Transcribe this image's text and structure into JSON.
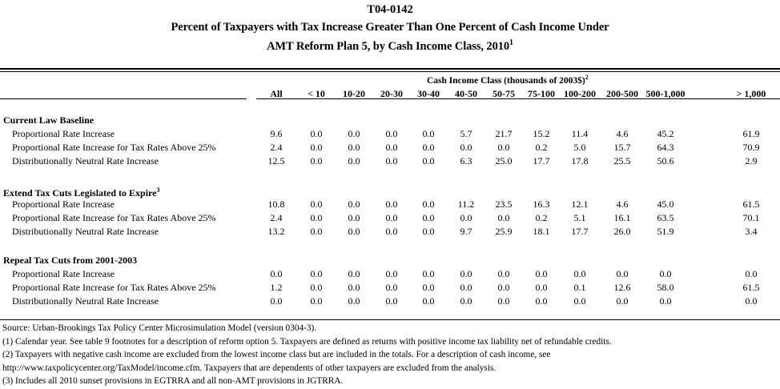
{
  "document": {
    "table_id": "T04-0142",
    "title_line1": "Percent of Taxpayers with Tax Increase Greater Than One Percent of Cash Income Under",
    "title_line2": "AMT Reform Plan 5, by Cash Income Class, 2010",
    "title_footnote": "1"
  },
  "table": {
    "spanner": "Cash Income Class (thousands of 2003$)",
    "spanner_footnote": "2",
    "columns": [
      "All",
      "< 10",
      "10-20",
      "20-30",
      "30-40",
      "40-50",
      "50-75",
      "75-100",
      "100-200",
      "200-500",
      "500-1,000",
      "> 1,000"
    ],
    "sections": [
      {
        "title": "Current Law Baseline",
        "footnote": "",
        "rows": [
          {
            "label": "Proportional Rate Increase",
            "values": [
              "9.6",
              "0.0",
              "0.0",
              "0.0",
              "0.0",
              "5.7",
              "21.7",
              "15.2",
              "11.4",
              "4.6",
              "45.2",
              "61.9"
            ]
          },
          {
            "label": "Proportional Rate Increase for Tax Rates Above 25%",
            "values": [
              "2.4",
              "0.0",
              "0.0",
              "0.0",
              "0.0",
              "0.0",
              "0.0",
              "0.2",
              "5.0",
              "15.7",
              "64.3",
              "70.9"
            ]
          },
          {
            "label": "Distributionally Neutral Rate Increase",
            "values": [
              "12.5",
              "0.0",
              "0.0",
              "0.0",
              "0.0",
              "6.3",
              "25.0",
              "17.7",
              "17.8",
              "25.5",
              "50.6",
              "2.9"
            ]
          }
        ]
      },
      {
        "title": "Extend Tax Cuts Legislated to Expire",
        "footnote": "3",
        "rows": [
          {
            "label": "Proportional Rate Increase",
            "values": [
              "10.8",
              "0.0",
              "0.0",
              "0.0",
              "0.0",
              "11.2",
              "23.5",
              "16.3",
              "12.1",
              "4.6",
              "45.0",
              "61.5"
            ]
          },
          {
            "label": "Proportional Rate Increase for Tax Rates Above 25%",
            "values": [
              "2.4",
              "0.0",
              "0.0",
              "0.0",
              "0.0",
              "0.0",
              "0.0",
              "0.2",
              "5.1",
              "16.1",
              "63.5",
              "70.1"
            ]
          },
          {
            "label": "Distributionally Neutral Rate Increase",
            "values": [
              "13.2",
              "0.0",
              "0.0",
              "0.0",
              "0.0",
              "9.7",
              "25.9",
              "18.1",
              "17.7",
              "26.0",
              "51.9",
              "3.4"
            ]
          }
        ]
      },
      {
        "title": "Repeal Tax Cuts from 2001-2003",
        "footnote": "",
        "rows": [
          {
            "label": "Proportional Rate Increase",
            "values": [
              "0.0",
              "0.0",
              "0.0",
              "0.0",
              "0.0",
              "0.0",
              "0.0",
              "0.0",
              "0.0",
              "0.0",
              "0.0",
              "0.0"
            ]
          },
          {
            "label": "Proportional Rate Increase for Tax Rates Above 25%",
            "values": [
              "1.2",
              "0.0",
              "0.0",
              "0.0",
              "0.0",
              "0.0",
              "0.0",
              "0.0",
              "0.1",
              "12.6",
              "58.0",
              "61.5"
            ]
          },
          {
            "label": "Distributionally Neutral Rate Increase",
            "values": [
              "0.0",
              "0.0",
              "0.0",
              "0.0",
              "0.0",
              "0.0",
              "0.0",
              "0.0",
              "0.0",
              "0.0",
              "0.0",
              "0.0"
            ]
          }
        ]
      }
    ]
  },
  "notes": [
    "Source: Urban-Brookings Tax Policy Center Microsimulation Model (version 0304-3).",
    "(1) Calendar year.  See table 9 footnotes for a description of reform option 5.  Taxpayers are defined as returns with positive income tax liability net of refundable credits.",
    "(2) Taxpayers with negative cash income are excluded from the lowest income class but are included in the totals. For a description of cash income, see",
    "http://www.taxpolicycenter.org/TaxModel/income.cfm. Taxpayers that are dependents of other taxpayers are excluded from the analysis.",
    "(3) Includes all 2010 sunset provisions in EGTRRA and all non-AMT provisions in JGTRRA."
  ]
}
